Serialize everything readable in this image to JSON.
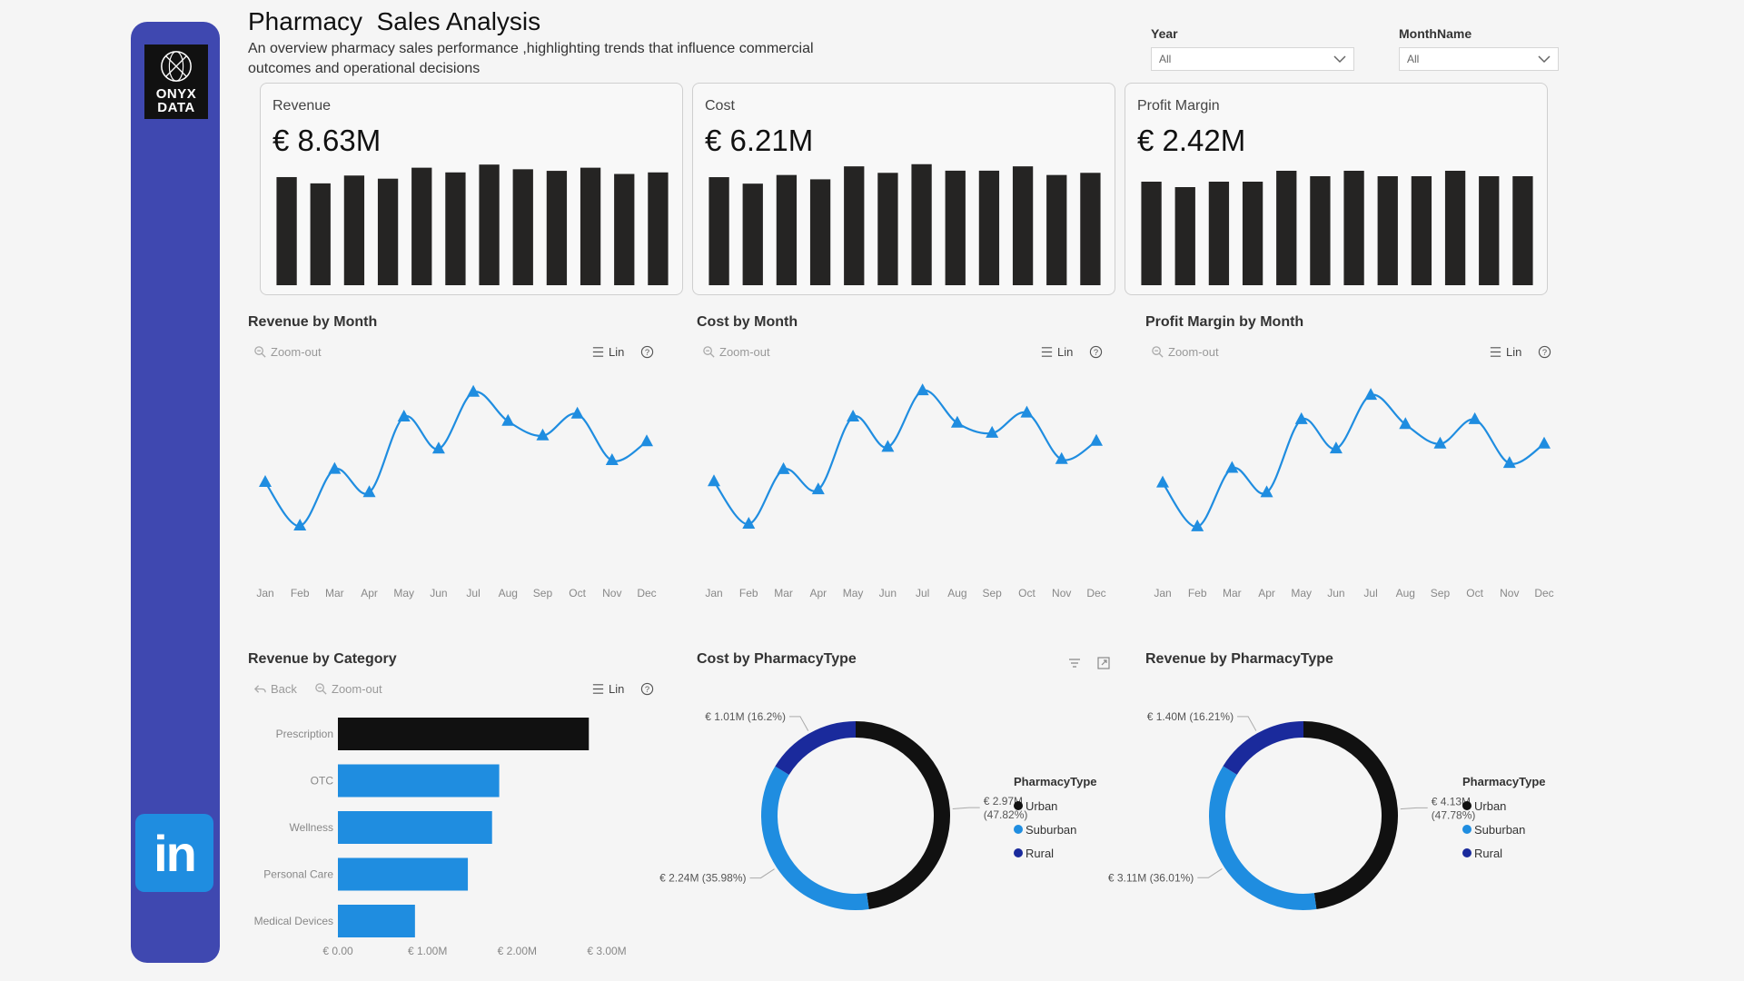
{
  "header": {
    "title": "Pharmacy  Sales Analysis",
    "subtitle": "An overview pharmacy sales performance ,highlighting trends that influence commercial outcomes and operational decisions"
  },
  "logo": {
    "line1": "ONYX",
    "line2": "DATA"
  },
  "social": {
    "linkedin_label": "in"
  },
  "filters": {
    "year": {
      "label": "Year",
      "value": "All"
    },
    "month": {
      "label": "MonthName",
      "value": "All"
    }
  },
  "kpis": [
    {
      "label": "Revenue",
      "value": "€ 8.63M"
    },
    {
      "label": "Cost",
      "value": "€ 6.21M"
    },
    {
      "label": "Profit Margin",
      "value": "€ 2.42M"
    }
  ],
  "toolbar": {
    "zoom_out": "Zoom-out",
    "lin": "Lin",
    "back": "Back"
  },
  "colors": {
    "sidebar": "#3f48b0",
    "accent": "#1f8de0",
    "urban": "#111111",
    "suburban": "#1f8de0",
    "rural": "#1a2a9c",
    "bars_dark": "#252423"
  },
  "chart_data": [
    {
      "id": "revenue-sparkbar",
      "type": "bar",
      "title": "Revenue",
      "categories": [
        "Jan",
        "Feb",
        "Mar",
        "Apr",
        "May",
        "Jun",
        "Jul",
        "Aug",
        "Sep",
        "Oct",
        "Nov",
        "Dec"
      ],
      "values": [
        0.69,
        0.65,
        0.7,
        0.68,
        0.75,
        0.72,
        0.77,
        0.74,
        0.73,
        0.75,
        0.71,
        0.72
      ],
      "ylim": [
        0,
        0.8
      ]
    },
    {
      "id": "cost-sparkbar",
      "type": "bar",
      "title": "Cost",
      "categories": [
        "Jan",
        "Feb",
        "Mar",
        "Apr",
        "May",
        "Jun",
        "Jul",
        "Aug",
        "Sep",
        "Oct",
        "Nov",
        "Dec"
      ],
      "values": [
        0.5,
        0.47,
        0.51,
        0.49,
        0.55,
        0.52,
        0.56,
        0.53,
        0.53,
        0.55,
        0.51,
        0.52
      ],
      "ylim": [
        0,
        0.58
      ]
    },
    {
      "id": "profit-sparkbar",
      "type": "bar",
      "title": "Profit Margin",
      "categories": [
        "Jan",
        "Feb",
        "Mar",
        "Apr",
        "May",
        "Jun",
        "Jul",
        "Aug",
        "Sep",
        "Oct",
        "Nov",
        "Dec"
      ],
      "values": [
        0.19,
        0.18,
        0.19,
        0.19,
        0.21,
        0.2,
        0.21,
        0.2,
        0.2,
        0.21,
        0.2,
        0.2
      ],
      "ylim": [
        0,
        0.23
      ]
    },
    {
      "id": "revenue-by-month",
      "type": "line",
      "title": "Revenue by Month",
      "categories": [
        "Jan",
        "Feb",
        "Mar",
        "Apr",
        "May",
        "Jun",
        "Jul",
        "Aug",
        "Sep",
        "Oct",
        "Nov",
        "Dec"
      ],
      "values": [
        0.68,
        0.65,
        0.689,
        0.673,
        0.725,
        0.703,
        0.742,
        0.722,
        0.712,
        0.727,
        0.695,
        0.708
      ],
      "ylim": [
        0.64,
        0.75
      ]
    },
    {
      "id": "cost-by-month",
      "type": "line",
      "title": "Cost by Month",
      "categories": [
        "Jan",
        "Feb",
        "Mar",
        "Apr",
        "May",
        "Jun",
        "Jul",
        "Aug",
        "Sep",
        "Oct",
        "Nov",
        "Dec"
      ],
      "values": [
        0.49,
        0.469,
        0.496,
        0.486,
        0.522,
        0.507,
        0.535,
        0.519,
        0.514,
        0.524,
        0.501,
        0.51
      ],
      "ylim": [
        0.46,
        0.54
      ]
    },
    {
      "id": "profit-by-month",
      "type": "line",
      "title": "Profit Margin by Month",
      "categories": [
        "Jan",
        "Feb",
        "Mar",
        "Apr",
        "May",
        "Jun",
        "Jul",
        "Aug",
        "Sep",
        "Oct",
        "Nov",
        "Dec"
      ],
      "values": [
        0.19,
        0.181,
        0.193,
        0.188,
        0.203,
        0.197,
        0.208,
        0.202,
        0.198,
        0.203,
        0.194,
        0.198
      ],
      "ylim": [
        0.178,
        0.211
      ]
    },
    {
      "id": "revenue-by-category",
      "type": "bar",
      "orientation": "horizontal",
      "title": "Revenue by Category",
      "categories": [
        "Prescription",
        "OTC",
        "Wellness",
        "Personal Care",
        "Medical Devices"
      ],
      "values": [
        2.8,
        1.8,
        1.72,
        1.45,
        0.86
      ],
      "xlim": [
        0,
        3.0
      ],
      "ticks": [
        "€ 0.00",
        "€ 1.00M",
        "€ 2.00M",
        "€ 3.00M"
      ]
    },
    {
      "id": "cost-by-pharmacytype",
      "type": "pie",
      "title": "Cost by PharmacyType",
      "legend_title": "PharmacyType",
      "labels": [
        "Urban",
        "Suburban",
        "Rural"
      ],
      "values": [
        2.97,
        2.24,
        1.01
      ],
      "data_labels": [
        [
          "€ 2.97M",
          "(47.82%)"
        ],
        [
          "€ 2.24M (35.98%)"
        ],
        [
          "€ 1.01M (16.2%)"
        ]
      ]
    },
    {
      "id": "revenue-by-pharmacytype",
      "type": "pie",
      "title": "Revenue by PharmacyType",
      "legend_title": "PharmacyType",
      "labels": [
        "Urban",
        "Suburban",
        "Rural"
      ],
      "values": [
        4.13,
        3.11,
        1.4
      ],
      "data_labels": [
        [
          "€ 4.13M",
          "(47.78%)"
        ],
        [
          "€ 3.11M (36.01%)"
        ],
        [
          "€ 1.40M (16.21%)"
        ]
      ]
    }
  ]
}
